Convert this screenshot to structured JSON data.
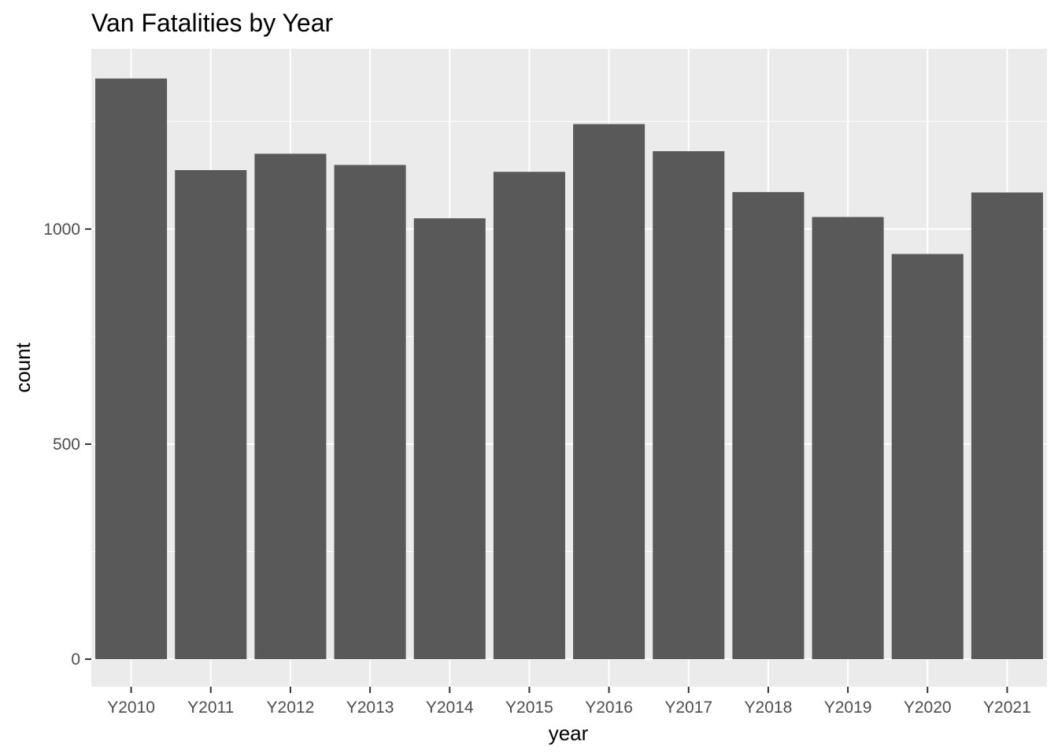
{
  "chart_data": {
    "type": "bar",
    "title": "Van Fatalities by Year",
    "xlabel": "year",
    "ylabel": "count",
    "categories": [
      "Y2010",
      "Y2011",
      "Y2012",
      "Y2013",
      "Y2014",
      "Y2015",
      "Y2016",
      "Y2017",
      "Y2018",
      "Y2019",
      "Y2020",
      "Y2021"
    ],
    "values": [
      1350,
      1137,
      1175,
      1149,
      1025,
      1133,
      1244,
      1181,
      1086,
      1028,
      942,
      1085
    ],
    "ylim": [
      -64,
      1419
    ],
    "yticks": [
      0,
      500,
      1000
    ],
    "grid": true,
    "legend": "none",
    "colors": {
      "bar": "#595959",
      "panel": "#ebebeb",
      "grid": "#ffffff"
    }
  }
}
